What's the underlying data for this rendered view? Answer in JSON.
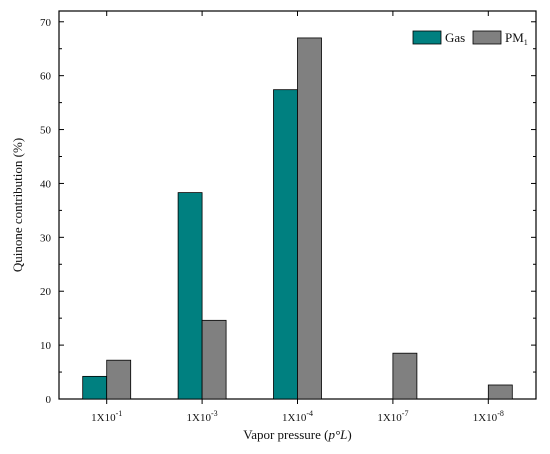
{
  "chart_data": {
    "type": "bar",
    "title": "",
    "xlabel": "Vapor pressure (p°L)",
    "xlabel_parts": {
      "prefix": "Vapor pressure (",
      "italic": "p°L",
      "suffix": ")"
    },
    "ylabel": "Quinone contribution (%)",
    "ylim": [
      0,
      72
    ],
    "yticks": [
      0,
      10,
      20,
      30,
      40,
      50,
      60,
      70
    ],
    "categories": [
      {
        "base": "1X10",
        "exp": "-1"
      },
      {
        "base": "1X10",
        "exp": "-3"
      },
      {
        "base": "1X10",
        "exp": "-4"
      },
      {
        "base": "1X10",
        "exp": "-7"
      },
      {
        "base": "1X10",
        "exp": "-8"
      }
    ],
    "series": [
      {
        "name": "Gas",
        "name_sub": "",
        "color": "#008080",
        "values": [
          4.2,
          38.3,
          57.4,
          0,
          0
        ]
      },
      {
        "name": "PM",
        "name_sub": "1",
        "color": "#808080",
        "values": [
          7.2,
          14.6,
          67.0,
          8.5,
          2.6
        ]
      }
    ],
    "legend_position": "top-right",
    "grid": false
  }
}
